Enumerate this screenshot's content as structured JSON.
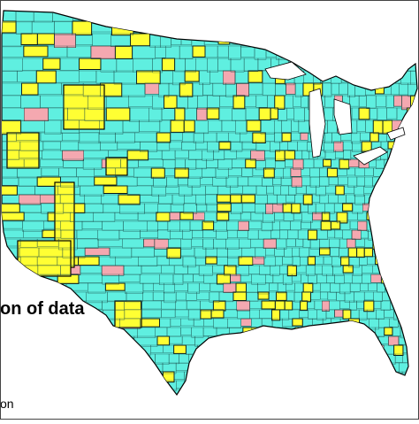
{
  "map": {
    "title": "",
    "colors": {
      "background": "#ffffff",
      "category_cyan": "#5fefe0",
      "category_yellow": "#ffff33",
      "category_pink": "#f4a8b0",
      "border": "#000000",
      "lake": "#ffffff"
    },
    "legend_categories": [
      {
        "name": "",
        "color": "#5fefe0"
      },
      {
        "name": "",
        "color": "#ffff33"
      },
      {
        "name": "",
        "color": "#f4a8b0"
      }
    ]
  },
  "captions": {
    "main": "on of data",
    "small": "on"
  }
}
